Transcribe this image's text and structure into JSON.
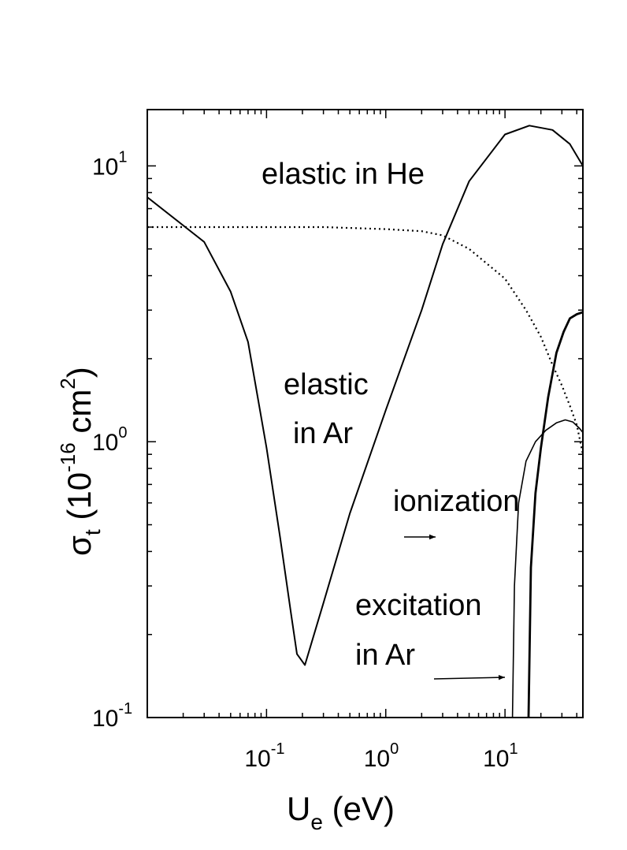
{
  "chart_data": {
    "type": "line",
    "title": "",
    "xlabel": {
      "base": "U",
      "sub": "e",
      "rest": " (eV)"
    },
    "ylabel": {
      "base": "σ",
      "sub": "t",
      "pre": " (10",
      "sup1": "-16",
      "mid": " cm",
      "sup2": "2",
      "post": ")"
    },
    "x_scale": "log",
    "y_scale": "log",
    "xlim": [
      0.01,
      45
    ],
    "ylim": [
      0.1,
      16
    ],
    "x_ticks": [
      {
        "value": 0.1,
        "base": "10",
        "exp": "-1"
      },
      {
        "value": 1,
        "base": "10",
        "exp": "0"
      },
      {
        "value": 10,
        "base": "10",
        "exp": "1"
      }
    ],
    "y_ticks": [
      {
        "value": 0.1,
        "base": "10",
        "exp": "-1"
      },
      {
        "value": 1,
        "base": "10",
        "exp": "0"
      },
      {
        "value": 10,
        "base": "10",
        "exp": "1"
      }
    ],
    "series": [
      {
        "name": "elastic in Ar",
        "style": "solid",
        "x": [
          0.01,
          0.03,
          0.05,
          0.07,
          0.1,
          0.13,
          0.16,
          0.18,
          0.21,
          0.3,
          0.5,
          1.0,
          2.0,
          3.0,
          5.0,
          10.0,
          16.0,
          25.0,
          35.0,
          45.0
        ],
        "y": [
          7.7,
          5.3,
          3.5,
          2.3,
          0.95,
          0.45,
          0.24,
          0.17,
          0.155,
          0.26,
          0.55,
          1.3,
          3.0,
          5.2,
          8.8,
          13.0,
          14.0,
          13.5,
          12.0,
          10.0
        ]
      },
      {
        "name": "elastic in He",
        "style": "dotted",
        "x": [
          0.01,
          0.03,
          0.1,
          0.3,
          1.0,
          2.0,
          3.0,
          5.0,
          10.0,
          15.0,
          20.0,
          25.0,
          30.0,
          35.0,
          40.0,
          45.0
        ],
        "y": [
          6.0,
          6.0,
          6.0,
          6.0,
          5.9,
          5.8,
          5.6,
          5.0,
          3.9,
          3.0,
          2.4,
          1.9,
          1.6,
          1.35,
          1.15,
          0.9
        ]
      },
      {
        "name": "excitation in Ar",
        "style": "solid-thin",
        "x": [
          11.55,
          12.0,
          13.0,
          15.0,
          18.0,
          22.0,
          27.0,
          32.0,
          37.0,
          42.0,
          45.0
        ],
        "y": [
          0.1,
          0.3,
          0.6,
          0.85,
          1.0,
          1.1,
          1.17,
          1.2,
          1.18,
          1.12,
          1.08
        ]
      },
      {
        "name": "ionization",
        "style": "solid-thick",
        "x": [
          15.76,
          16.5,
          18.0,
          20.0,
          23.0,
          27.0,
          31.0,
          35.0,
          40.0,
          45.0
        ],
        "y": [
          0.1,
          0.35,
          0.65,
          0.95,
          1.45,
          2.1,
          2.5,
          2.8,
          2.9,
          2.95
        ]
      }
    ],
    "annotations": [
      {
        "text": "elastic in He"
      },
      {
        "text": "elastic",
        "text2": "in Ar"
      },
      {
        "text": "ionization",
        "arrow": true
      },
      {
        "text": "excitation",
        "text2": "in Ar",
        "arrow": true
      }
    ],
    "grid": false,
    "legend": "none"
  }
}
